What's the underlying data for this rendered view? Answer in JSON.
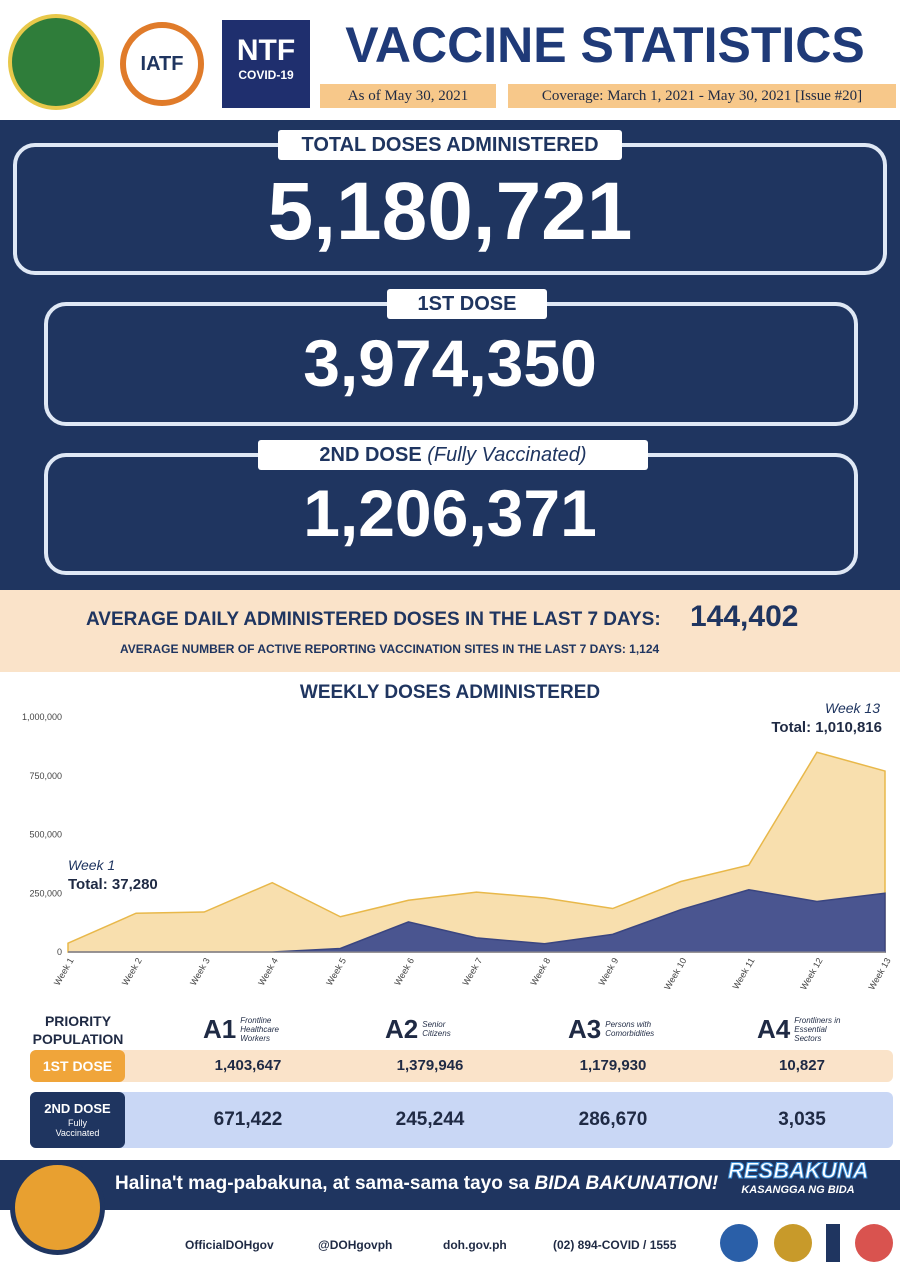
{
  "header": {
    "title": "VACCINE STATISTICS",
    "as_of": "As of May 30, 2021",
    "coverage": "Coverage: March 1, 2021 - May 30, 2021 [Issue #20]",
    "logos": [
      "IATF",
      "NTF",
      "COVID-19"
    ]
  },
  "totals": [
    {
      "label": "TOTAL DOSES ADMINISTERED",
      "value": "5,180,721"
    },
    {
      "label": "1ST DOSE",
      "value": "3,974,350"
    },
    {
      "label": "2ND DOSE",
      "note": "(Fully Vaccinated)",
      "value": "1,206,371"
    }
  ],
  "averages": {
    "daily_label": "AVERAGE DAILY ADMINISTERED DOSES IN THE LAST 7 DAYS:",
    "daily_value": "144,402",
    "sites_label": "AVERAGE NUMBER OF ACTIVE REPORTING VACCINATION SITES IN THE LAST 7 DAYS:",
    "sites_value": "1,124"
  },
  "chart_data": {
    "type": "area",
    "title": "WEEKLY DOSES ADMINISTERED",
    "categories": [
      "Week 1",
      "Week 2",
      "Week 3",
      "Week 4",
      "Week 5",
      "Week 6",
      "Week 7",
      "Week 8",
      "Week 9",
      "Week 10",
      "Week 11",
      "Week 12",
      "Week 13"
    ],
    "series": [
      {
        "color": "#f8dfae",
        "values": [
          37280,
          165000,
          170000,
          295000,
          150000,
          220000,
          255000,
          230000,
          185000,
          300000,
          370000,
          850000,
          770000
        ]
      },
      {
        "color": "#4a5590",
        "values": [
          0,
          0,
          0,
          0,
          15000,
          128000,
          60000,
          35000,
          75000,
          180000,
          265000,
          215000,
          250000
        ]
      }
    ],
    "ylim": [
      0,
      1000000
    ],
    "yticks": [
      0,
      {
        "value": 250000,
        "label": "250,000"
      },
      {
        "value": 500000,
        "label": "500,000"
      },
      {
        "value": 750000,
        "label": "750,000"
      },
      {
        "value": 1000000,
        "label": "1,000,000"
      }
    ],
    "annotations": [
      {
        "label": "Week 1",
        "text": "Total: 37,280"
      },
      {
        "label": "Week 13",
        "text": "Total: 1,010,816"
      }
    ]
  },
  "table": {
    "header": "PRIORITY POPULATION",
    "groups": [
      {
        "code": "A1",
        "desc": "Frontline Healthcare Workers"
      },
      {
        "code": "A2",
        "desc": "Senior Citizens"
      },
      {
        "code": "A3",
        "desc": "Persons with Comorbidities"
      },
      {
        "code": "A4",
        "desc": "Frontliners in Essential Sectors"
      }
    ],
    "rows": [
      {
        "label": "1ST DOSE",
        "values": [
          "1,403,647",
          "1,379,946",
          "1,179,930",
          "10,827"
        ]
      },
      {
        "label": "2ND DOSE",
        "note": "Fully Vaccinated",
        "values": [
          "671,422",
          "245,244",
          "286,670",
          "3,035"
        ]
      }
    ]
  },
  "footer": {
    "slogan": "Halina't mag-pabakuna, at sama-sama tayo sa",
    "slogan_emphasis": "BIDA BAKUNATION!",
    "brand": "RESBAKUNA",
    "brand_sub": "KASANGGA NG BIDA",
    "links": [
      "OfficialDOHgov",
      "@DOHgovph",
      "doh.gov.ph",
      "(02) 894-COVID / 1555"
    ]
  }
}
